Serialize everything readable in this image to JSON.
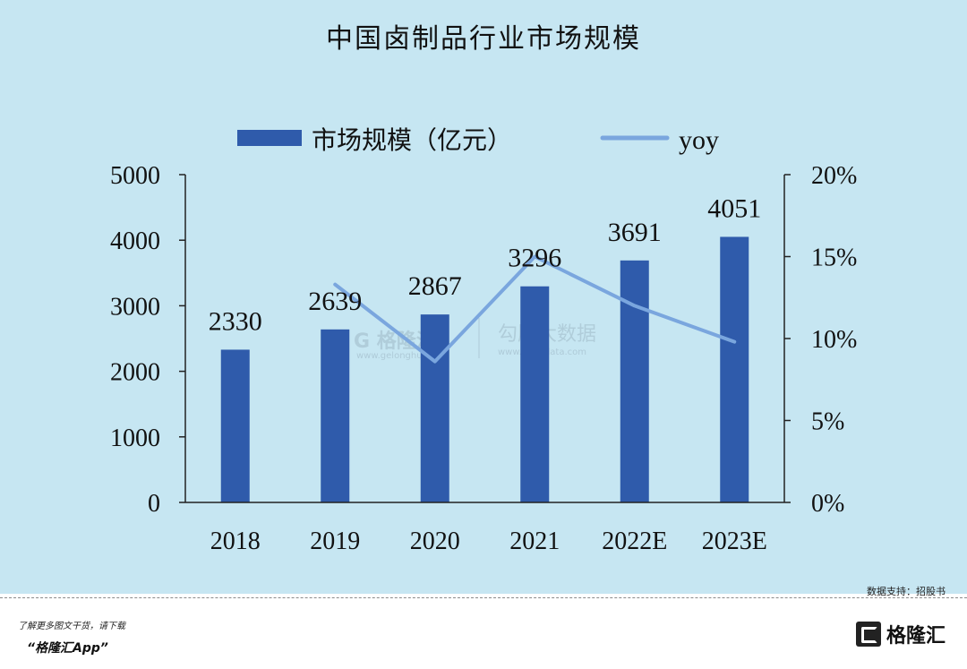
{
  "title": "中国卤制品行业市场规模",
  "chart_data": {
    "type": "bar",
    "categories": [
      "2018",
      "2019",
      "2020",
      "2021",
      "2022E",
      "2023E"
    ],
    "series": [
      {
        "name": "市场规模（亿元）",
        "type": "bar",
        "axis": "left",
        "values": [
          2330,
          2639,
          2867,
          3296,
          3691,
          4051
        ]
      },
      {
        "name": "yoy",
        "type": "line",
        "axis": "right",
        "values": [
          null,
          13.3,
          8.6,
          15.0,
          12.0,
          9.8
        ]
      }
    ],
    "data_labels": [
      "2330",
      "2639",
      "2867",
      "3296",
      "3691",
      "4051"
    ],
    "y_left": {
      "ticks": [
        "0",
        "1000",
        "2000",
        "3000",
        "4000",
        "5000"
      ],
      "range": [
        0,
        5000
      ]
    },
    "y_right": {
      "ticks": [
        "0%",
        "5%",
        "10%",
        "15%",
        "20%"
      ],
      "range": [
        0,
        20
      ]
    },
    "legend": [
      {
        "label": "市场规模（亿元）",
        "swatch": "bar"
      },
      {
        "label": "yoy",
        "swatch": "line"
      }
    ],
    "legend_position": "top",
    "colors": {
      "bar": "#2f5bab",
      "line": "#7aa6de",
      "background": "#c6e6f2"
    }
  },
  "watermark": {
    "brand": "格隆汇",
    "brand_sub": "www.gelonghui.com",
    "partner": "勾股大数据",
    "partner_sub": "www.gogudata.com"
  },
  "source_note": "数据支持：招股书",
  "footer": {
    "line1": "了解更多图文干货，请下载",
    "line2": "“格隆汇App”",
    "logo_text": "格隆汇"
  }
}
